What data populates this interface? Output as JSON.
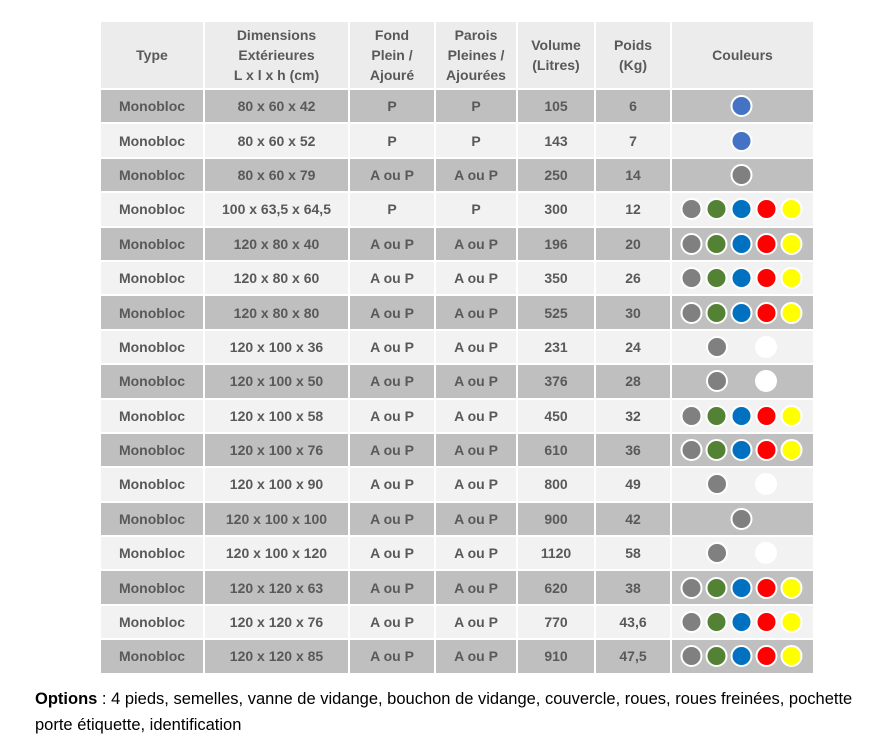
{
  "table": {
    "header": [
      "Type",
      "Dimensions\nExtérieures\nL x l x h (cm)",
      "Fond\nPlein /\nAjouré",
      "Parois\nPleines /\nAjourées",
      "Volume\n(Litres)",
      "Poids\n(Kg)",
      "Couleurs"
    ],
    "rows": [
      [
        "Monobloc",
        "80 x 60 x 42",
        "P",
        "P",
        "105",
        "6"
      ],
      [
        "Monobloc",
        "80 x 60 x 52",
        "P",
        "P",
        "143",
        "7"
      ],
      [
        "Monobloc",
        "80 x 60 x 79",
        "A ou P",
        "A ou P",
        "250",
        "14"
      ],
      [
        "Monobloc",
        "100 x 63,5 x 64,5",
        "P",
        "P",
        "300",
        "12"
      ],
      [
        "Monobloc",
        "120 x 80 x 40",
        "A ou P",
        "A ou P",
        "196",
        "20"
      ],
      [
        "Monobloc",
        "120 x 80 x 60",
        "A ou P",
        "A ou P",
        "350",
        "26"
      ],
      [
        "Monobloc",
        "120 x 80 x 80",
        "A ou P",
        "A ou P",
        "525",
        "30"
      ],
      [
        "Monobloc",
        "120 x 100 x 36",
        "A ou P",
        "A ou P",
        "231",
        "24"
      ],
      [
        "Monobloc",
        "120 x 100 x 50",
        "A ou P",
        "A ou P",
        "376",
        "28"
      ],
      [
        "Monobloc",
        "120 x 100 x 58",
        "A ou P",
        "A ou P",
        "450",
        "32"
      ],
      [
        "Monobloc",
        "120 x 100 x 76",
        "A ou P",
        "A ou P",
        "610",
        "36"
      ],
      [
        "Monobloc",
        "120 x 100 x 90",
        "A ou P",
        "A ou P",
        "800",
        "49"
      ],
      [
        "Monobloc",
        "120 x 100 x 100",
        "A ou P",
        "A ou P",
        "900",
        "42"
      ],
      [
        "Monobloc",
        "120 x 100 x 120",
        "A ou P",
        "A ou P",
        "1120",
        "58"
      ],
      [
        "Monobloc",
        "120 x 120 x 63",
        "A ou P",
        "A ou P",
        "620",
        "38"
      ],
      [
        "Monobloc",
        "120 x 120 x 76",
        "A ou P",
        "A ou P",
        "770",
        "43,6"
      ],
      [
        "Monobloc",
        "120 x 120 x 85",
        "A ou P",
        "A ou P",
        "910",
        "47,5"
      ]
    ]
  },
  "options": {
    "label": "Options",
    "text": " : 4 pieds, semelles, vanne de vidange, bouchon de vidange, couvercle, roues, roues freinées, pochette porte étiquette, identification"
  }
}
